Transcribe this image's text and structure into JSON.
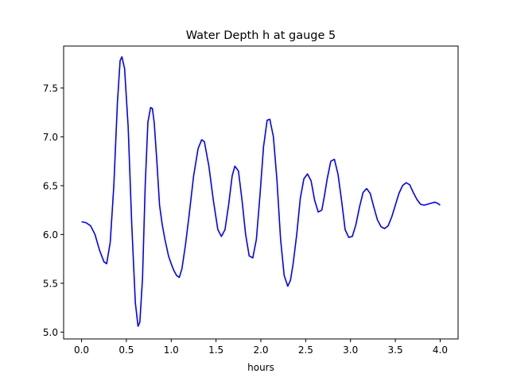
{
  "chart_data": {
    "type": "line",
    "title": "Water Depth h at gauge 5",
    "xlabel": "hours",
    "ylabel": "",
    "xlim": [
      -0.2,
      4.2
    ],
    "ylim": [
      4.93,
      7.93
    ],
    "xticks": [
      0.0,
      0.5,
      1.0,
      1.5,
      2.0,
      2.5,
      3.0,
      3.5,
      4.0
    ],
    "xtick_labels": [
      "0.0",
      "0.5",
      "1.0",
      "1.5",
      "2.0",
      "2.5",
      "3.0",
      "3.5",
      "4.0"
    ],
    "yticks": [
      5.0,
      5.5,
      6.0,
      6.5,
      7.0,
      7.5
    ],
    "ytick_labels": [
      "5.0",
      "5.5",
      "6.0",
      "6.5",
      "7.0",
      "7.5"
    ],
    "grid": false,
    "series": [
      {
        "color": "#0000ff",
        "x": [
          0.0,
          0.05,
          0.1,
          0.15,
          0.2,
          0.25,
          0.28,
          0.32,
          0.36,
          0.4,
          0.43,
          0.45,
          0.48,
          0.52,
          0.56,
          0.6,
          0.63,
          0.65,
          0.68,
          0.71,
          0.74,
          0.77,
          0.79,
          0.81,
          0.84,
          0.87,
          0.9,
          0.93,
          0.97,
          1.0,
          1.03,
          1.06,
          1.09,
          1.12,
          1.16,
          1.2,
          1.25,
          1.3,
          1.34,
          1.37,
          1.42,
          1.47,
          1.52,
          1.56,
          1.6,
          1.64,
          1.68,
          1.71,
          1.75,
          1.79,
          1.83,
          1.87,
          1.91,
          1.95,
          1.99,
          2.03,
          2.07,
          2.1,
          2.14,
          2.18,
          2.22,
          2.26,
          2.3,
          2.33,
          2.36,
          2.4,
          2.44,
          2.48,
          2.52,
          2.56,
          2.6,
          2.64,
          2.68,
          2.71,
          2.74,
          2.78,
          2.82,
          2.86,
          2.9,
          2.94,
          2.98,
          3.02,
          3.06,
          3.1,
          3.14,
          3.18,
          3.22,
          3.26,
          3.3,
          3.34,
          3.38,
          3.42,
          3.46,
          3.5,
          3.54,
          3.58,
          3.62,
          3.66,
          3.7,
          3.74,
          3.78,
          3.82,
          3.86,
          3.9,
          3.94,
          3.97,
          4.0
        ],
        "y": [
          6.13,
          6.12,
          6.09,
          6.0,
          5.84,
          5.72,
          5.7,
          5.92,
          6.5,
          7.35,
          7.78,
          7.82,
          7.7,
          7.1,
          6.1,
          5.3,
          5.06,
          5.1,
          5.55,
          6.5,
          7.15,
          7.3,
          7.29,
          7.15,
          6.75,
          6.3,
          6.1,
          5.95,
          5.78,
          5.7,
          5.63,
          5.58,
          5.56,
          5.65,
          5.9,
          6.2,
          6.6,
          6.88,
          6.97,
          6.95,
          6.7,
          6.35,
          6.05,
          5.98,
          6.05,
          6.3,
          6.6,
          6.7,
          6.65,
          6.35,
          6.0,
          5.78,
          5.76,
          5.95,
          6.4,
          6.9,
          7.17,
          7.18,
          7.0,
          6.55,
          5.95,
          5.58,
          5.47,
          5.53,
          5.7,
          6.0,
          6.37,
          6.57,
          6.62,
          6.55,
          6.35,
          6.23,
          6.25,
          6.4,
          6.57,
          6.75,
          6.77,
          6.62,
          6.35,
          6.05,
          5.97,
          5.98,
          6.1,
          6.28,
          6.43,
          6.47,
          6.42,
          6.28,
          6.15,
          6.08,
          6.06,
          6.09,
          6.18,
          6.3,
          6.42,
          6.5,
          6.53,
          6.51,
          6.43,
          6.36,
          6.31,
          6.3,
          6.31,
          6.32,
          6.33,
          6.32,
          6.3
        ]
      }
    ]
  }
}
